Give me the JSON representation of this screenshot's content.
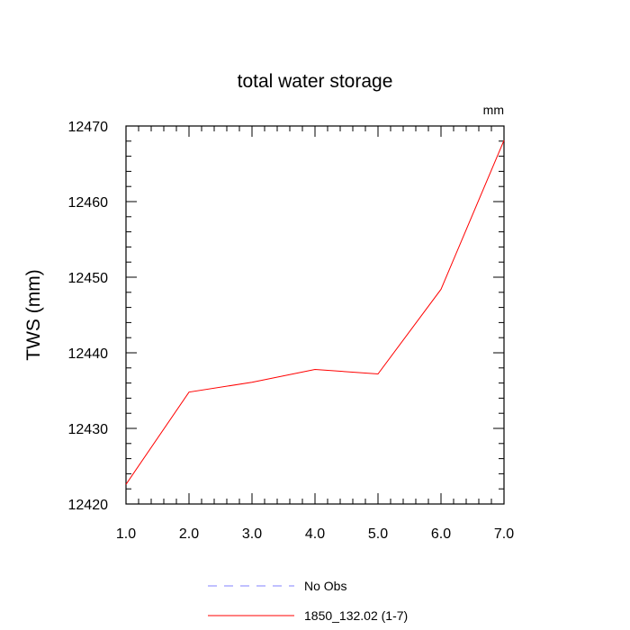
{
  "chart_data": {
    "type": "line",
    "title": "total water storage",
    "units_label": "mm",
    "xlabel": "",
    "ylabel": "TWS  (mm)",
    "xlim": [
      1,
      7
    ],
    "ylim": [
      12420,
      12470
    ],
    "x_ticks": [
      "1.0",
      "2.0",
      "3.0",
      "4.0",
      "5.0",
      "6.0",
      "7.0"
    ],
    "y_ticks": [
      "12420",
      "12430",
      "12440",
      "12450",
      "12460",
      "12470"
    ],
    "grid": false,
    "legend_position": "bottom-center",
    "series": [
      {
        "name": "No Obs",
        "color": "#8080ff",
        "style": "dashed",
        "x": [],
        "y": []
      },
      {
        "name": "1850_132.02 (1-7)",
        "color": "#ff0000",
        "style": "solid",
        "x": [
          1,
          2,
          3,
          4,
          5,
          6,
          7
        ],
        "y": [
          12422.6,
          12434.8,
          12436.1,
          12437.8,
          12437.2,
          12448.4,
          12468.1
        ]
      }
    ]
  }
}
